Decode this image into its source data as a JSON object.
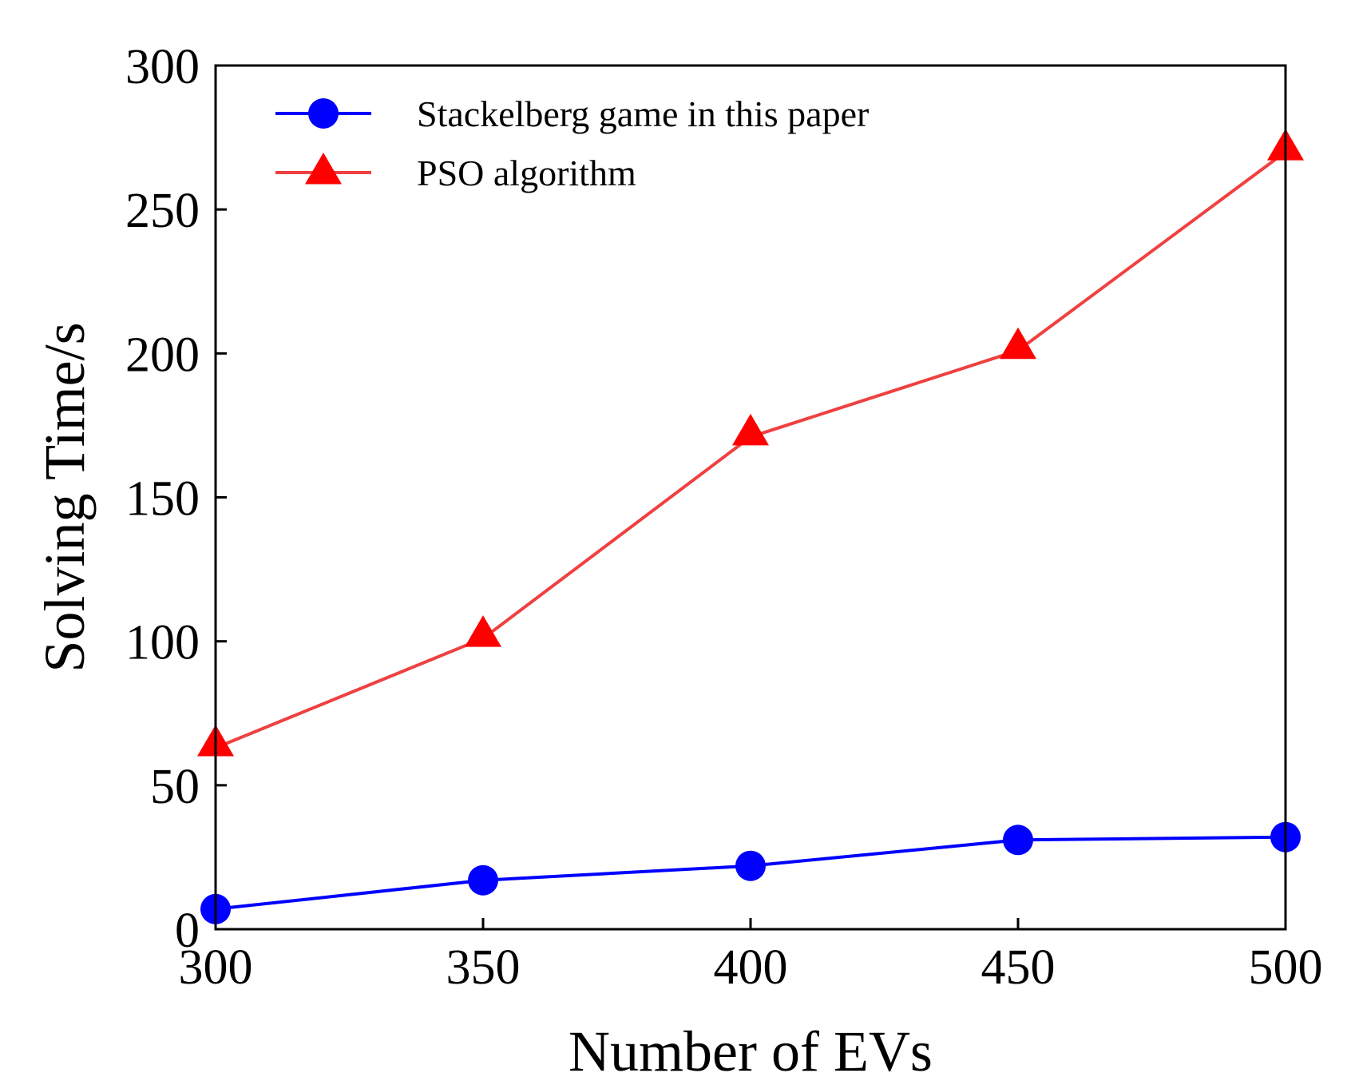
{
  "chart_data": {
    "type": "line",
    "title": "",
    "xlabel": "Number of EVs",
    "ylabel": "Solving Time/s",
    "x": [
      300,
      350,
      400,
      450,
      500
    ],
    "xlim": [
      300,
      500
    ],
    "ylim": [
      0,
      300
    ],
    "xticks": [
      300,
      350,
      400,
      450,
      500
    ],
    "yticks": [
      0,
      50,
      100,
      150,
      200,
      250,
      300
    ],
    "grid": false,
    "legend_position": "top-left",
    "series": [
      {
        "name": "Stackelberg game in this paper",
        "color": "#0000ff",
        "marker": "circle",
        "values": [
          7,
          17,
          22,
          31,
          32
        ]
      },
      {
        "name": "PSO algorithm",
        "color": "#ff0000",
        "line_color": "#f04040",
        "marker": "triangle",
        "values": [
          63,
          101,
          171,
          201,
          270
        ]
      }
    ]
  }
}
